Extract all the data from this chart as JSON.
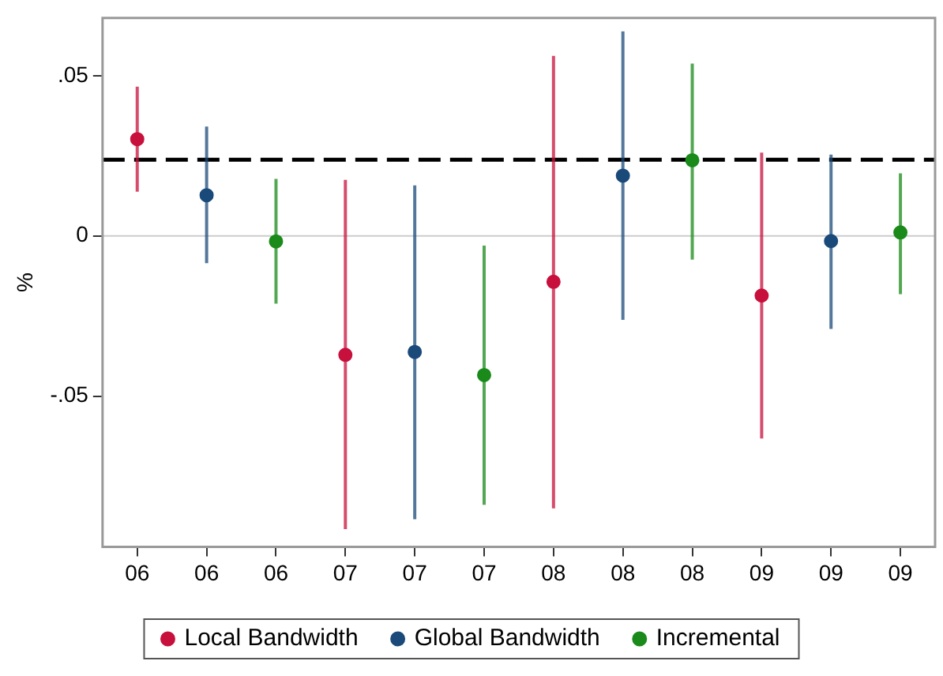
{
  "chart_data": {
    "type": "scatter",
    "ylabel": "%",
    "categories": [
      "06",
      "06",
      "06",
      "07",
      "07",
      "07",
      "08",
      "08",
      "08",
      "09",
      "09",
      "09"
    ],
    "series": [
      {
        "name": "Local Bandwidth",
        "color": "#c8103c",
        "values": [
          0.0302,
          null,
          null,
          -0.0371,
          null,
          null,
          -0.0143,
          null,
          null,
          -0.0186,
          null,
          null
        ],
        "errors": [
          [
            0.0138,
            0.0466
          ],
          null,
          null,
          [
            -0.0915,
            0.0175
          ],
          null,
          null,
          [
            -0.085,
            0.0562
          ],
          null,
          null,
          [
            -0.0632,
            0.026
          ],
          null,
          null
        ]
      },
      {
        "name": "Global Bandwidth",
        "color": "#1a4a7a",
        "values": [
          null,
          0.0127,
          null,
          null,
          -0.0362,
          null,
          null,
          0.0188,
          null,
          null,
          -0.0016,
          null
        ],
        "errors": [
          null,
          [
            -0.0085,
            0.0341
          ],
          null,
          null,
          [
            -0.0884,
            0.0158
          ],
          null,
          null,
          [
            -0.0262,
            0.0638
          ],
          null,
          null,
          [
            -0.029,
            0.0254
          ],
          null
        ]
      },
      {
        "name": "Incremental",
        "color": "#1a8a1a",
        "values": [
          null,
          null,
          -0.0017,
          null,
          null,
          -0.0434,
          null,
          null,
          0.0236,
          null,
          null,
          0.0011
        ],
        "errors": [
          null,
          null,
          [
            -0.0211,
            0.0178
          ],
          null,
          null,
          [
            -0.0839,
            -0.003
          ],
          null,
          null,
          [
            -0.0074,
            0.0538
          ],
          null,
          null,
          [
            -0.0182,
            0.0195
          ]
        ]
      }
    ],
    "ylim": [
      -0.097,
      0.068
    ],
    "yticks": [
      {
        "value": -0.05,
        "label": "-.05"
      },
      0,
      {
        "value": 0.05,
        "label": ".05"
      }
    ],
    "ref_lines": [
      {
        "axis": "y",
        "value": 0,
        "color": "#cccccc",
        "line_style": "solid"
      },
      {
        "axis": "y",
        "value": 0.0238,
        "color": "#000000",
        "line_style": "dashed"
      }
    ],
    "grid": false,
    "legend": "bottom",
    "marker": "circle"
  }
}
